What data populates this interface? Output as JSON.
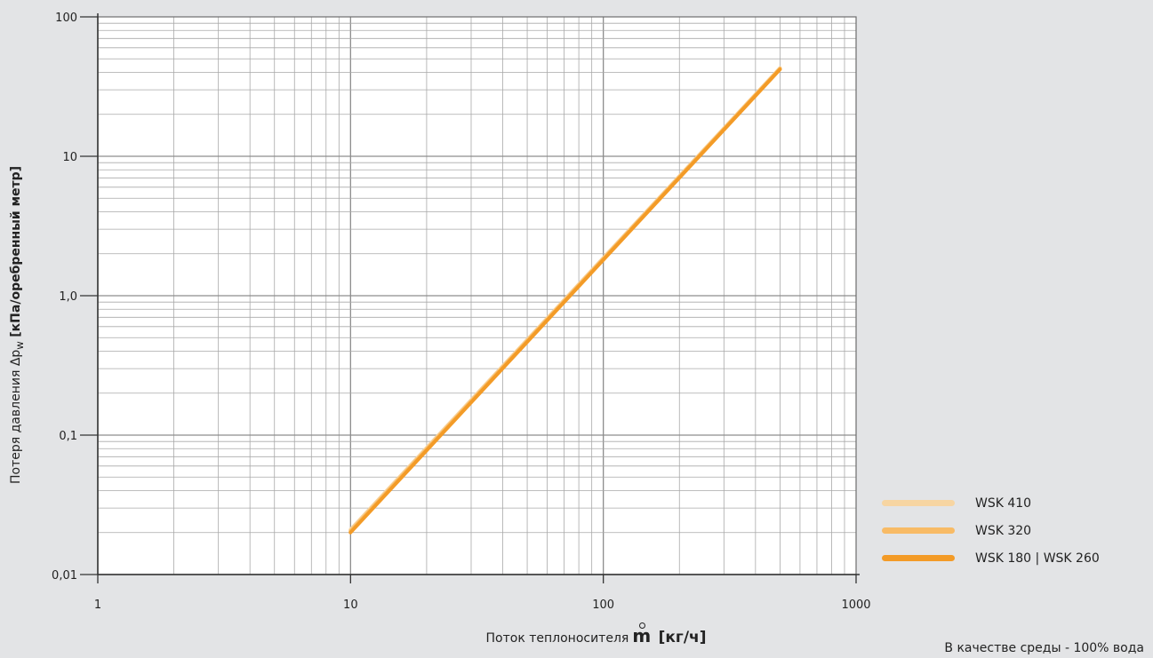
{
  "chart_data": {
    "type": "line",
    "x_scale": "log",
    "y_scale": "log",
    "xlim": [
      1,
      1000
    ],
    "ylim": [
      0.01,
      100
    ],
    "x_ticks": [
      "1",
      "10",
      "100",
      "1000"
    ],
    "y_ticks": [
      "0,01",
      "0,1",
      "1,0",
      "10",
      "100"
    ],
    "xlabel": {
      "text": "Поток теплоносителя",
      "symbol": "m",
      "unit": "[кг/ч]"
    },
    "ylabel": {
      "text": "Потеря давления Δp",
      "sub": "w",
      "unit": "[кПа/оребренный метр]"
    },
    "grid": true,
    "legend_position": "bottom-right",
    "series": [
      {
        "name": "WSK 410",
        "color": "#f7d5a2",
        "x": [
          10,
          500
        ],
        "y": [
          0.021,
          43
        ]
      },
      {
        "name": "WSK 320",
        "color": "#f8bb66",
        "x": [
          10,
          500
        ],
        "y": [
          0.0205,
          42.5
        ]
      },
      {
        "name": "WSK 180 | WSK 260",
        "color": "#f39b27",
        "x": [
          10,
          500
        ],
        "y": [
          0.02,
          42
        ]
      }
    ],
    "note": "В качестве среды - 100% вода"
  }
}
